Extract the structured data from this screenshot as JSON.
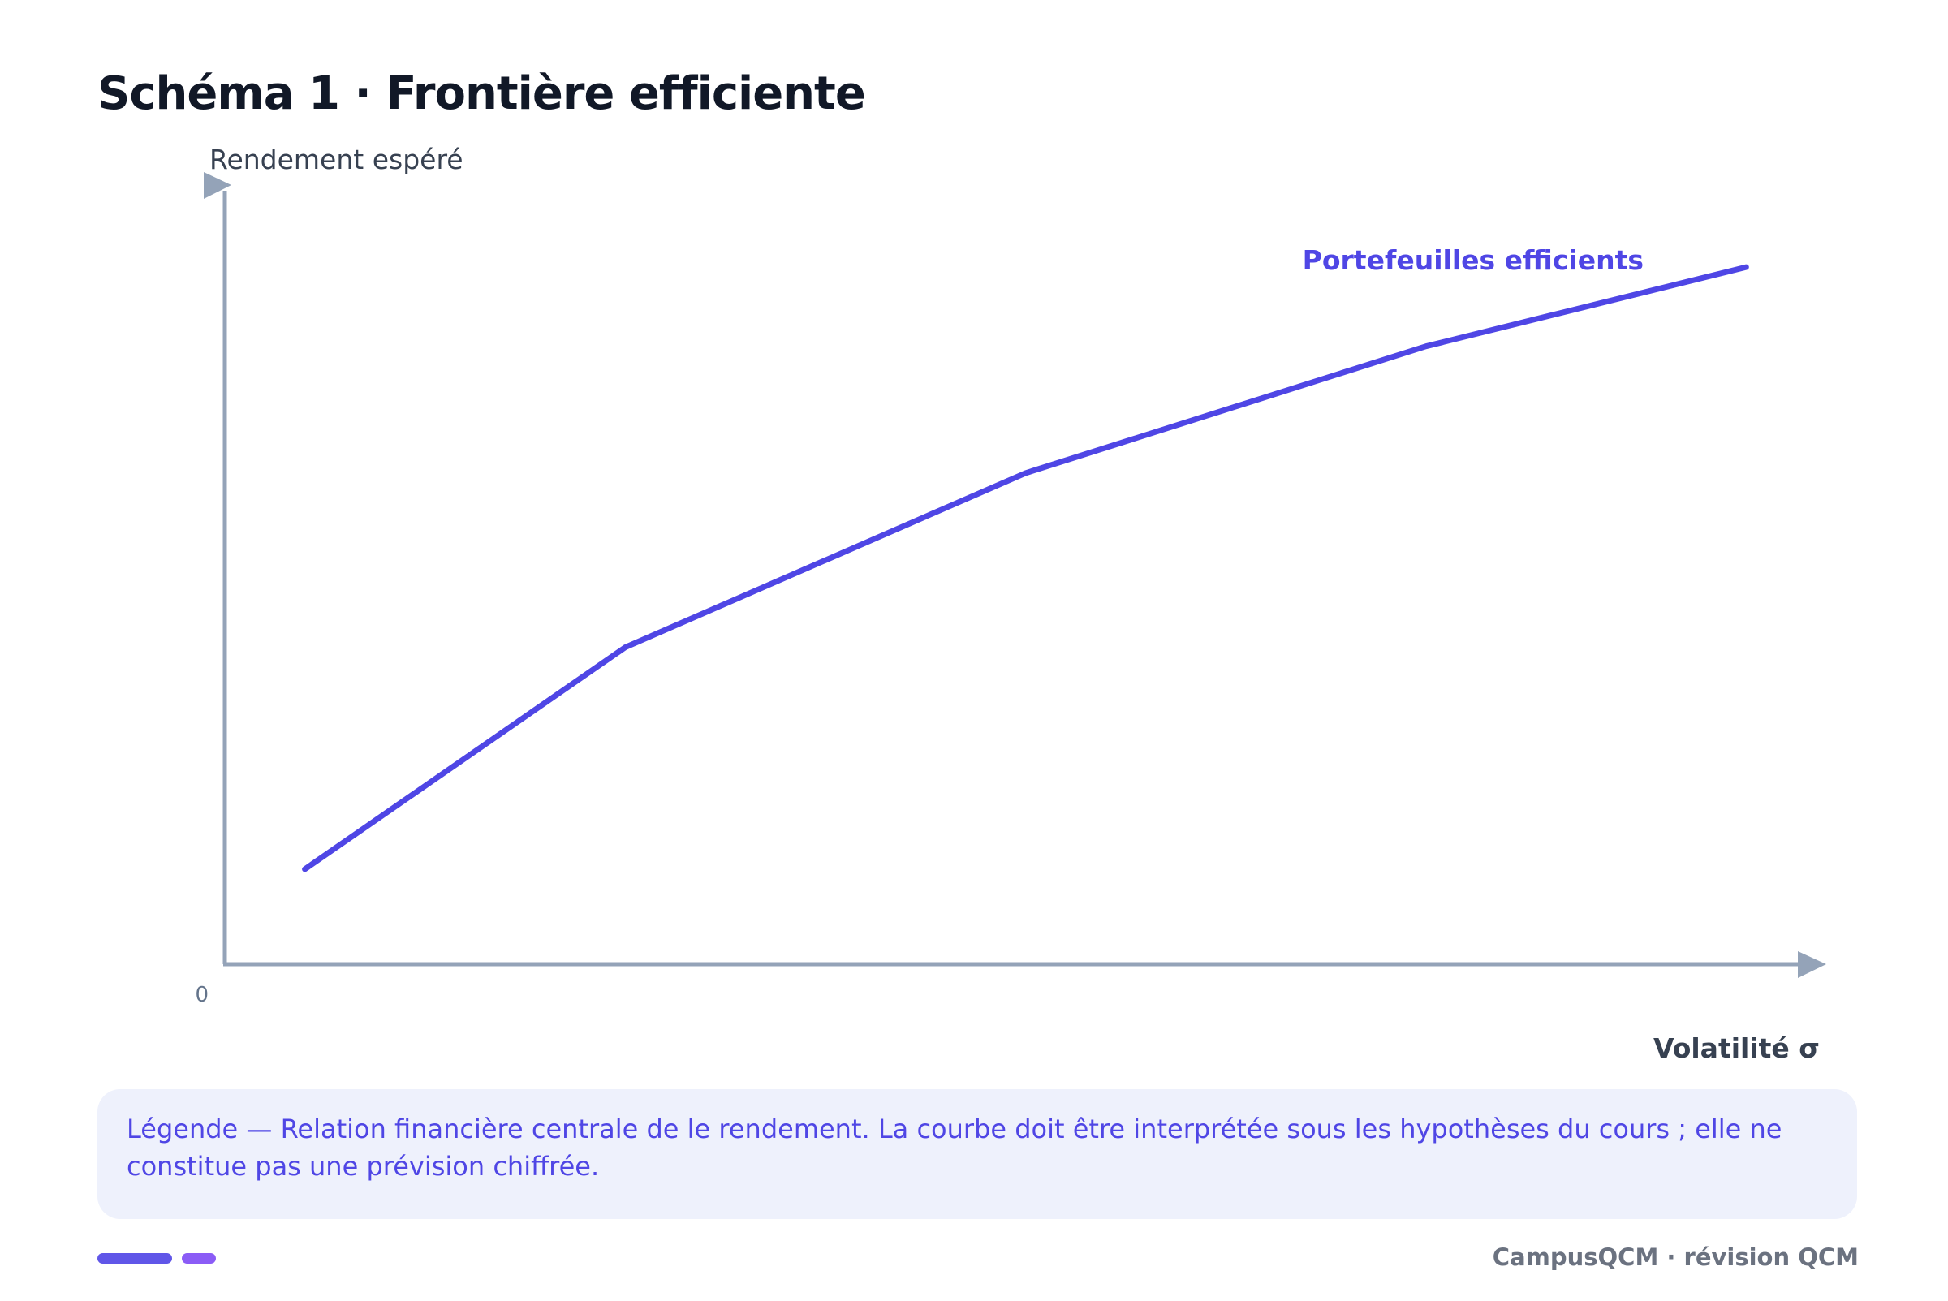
{
  "title": "Schéma 1 · Frontière efficiente",
  "chart_data": {
    "type": "line",
    "ylabel": "Rendement espéré",
    "xlabel": "Volatilité σ",
    "origin_label": "0",
    "series": [
      {
        "name": "Portefeuilles efficients",
        "x": [
          0.05,
          0.25,
          0.5,
          0.75,
          0.95
        ],
        "y": [
          0.12,
          0.4,
          0.62,
          0.78,
          0.88
        ]
      }
    ],
    "xlim": [
      0,
      1
    ],
    "ylim": [
      0,
      1
    ],
    "grid": false,
    "colors": {
      "series": "#4f46e5",
      "axis": "#94a3b8",
      "axis_label": "#374151",
      "origin": "#64748b"
    }
  },
  "legend_box": {
    "text": "Légende — Relation financière centrale de le rendement. La courbe doit être interprétée sous les hypothèses du cours ; elle ne constitue pas une prévision chiffrée."
  },
  "footer": {
    "brand": "CampusQCM · révision QCM",
    "accent_colors": [
      "#6056e8",
      "#8b5cf6"
    ]
  }
}
